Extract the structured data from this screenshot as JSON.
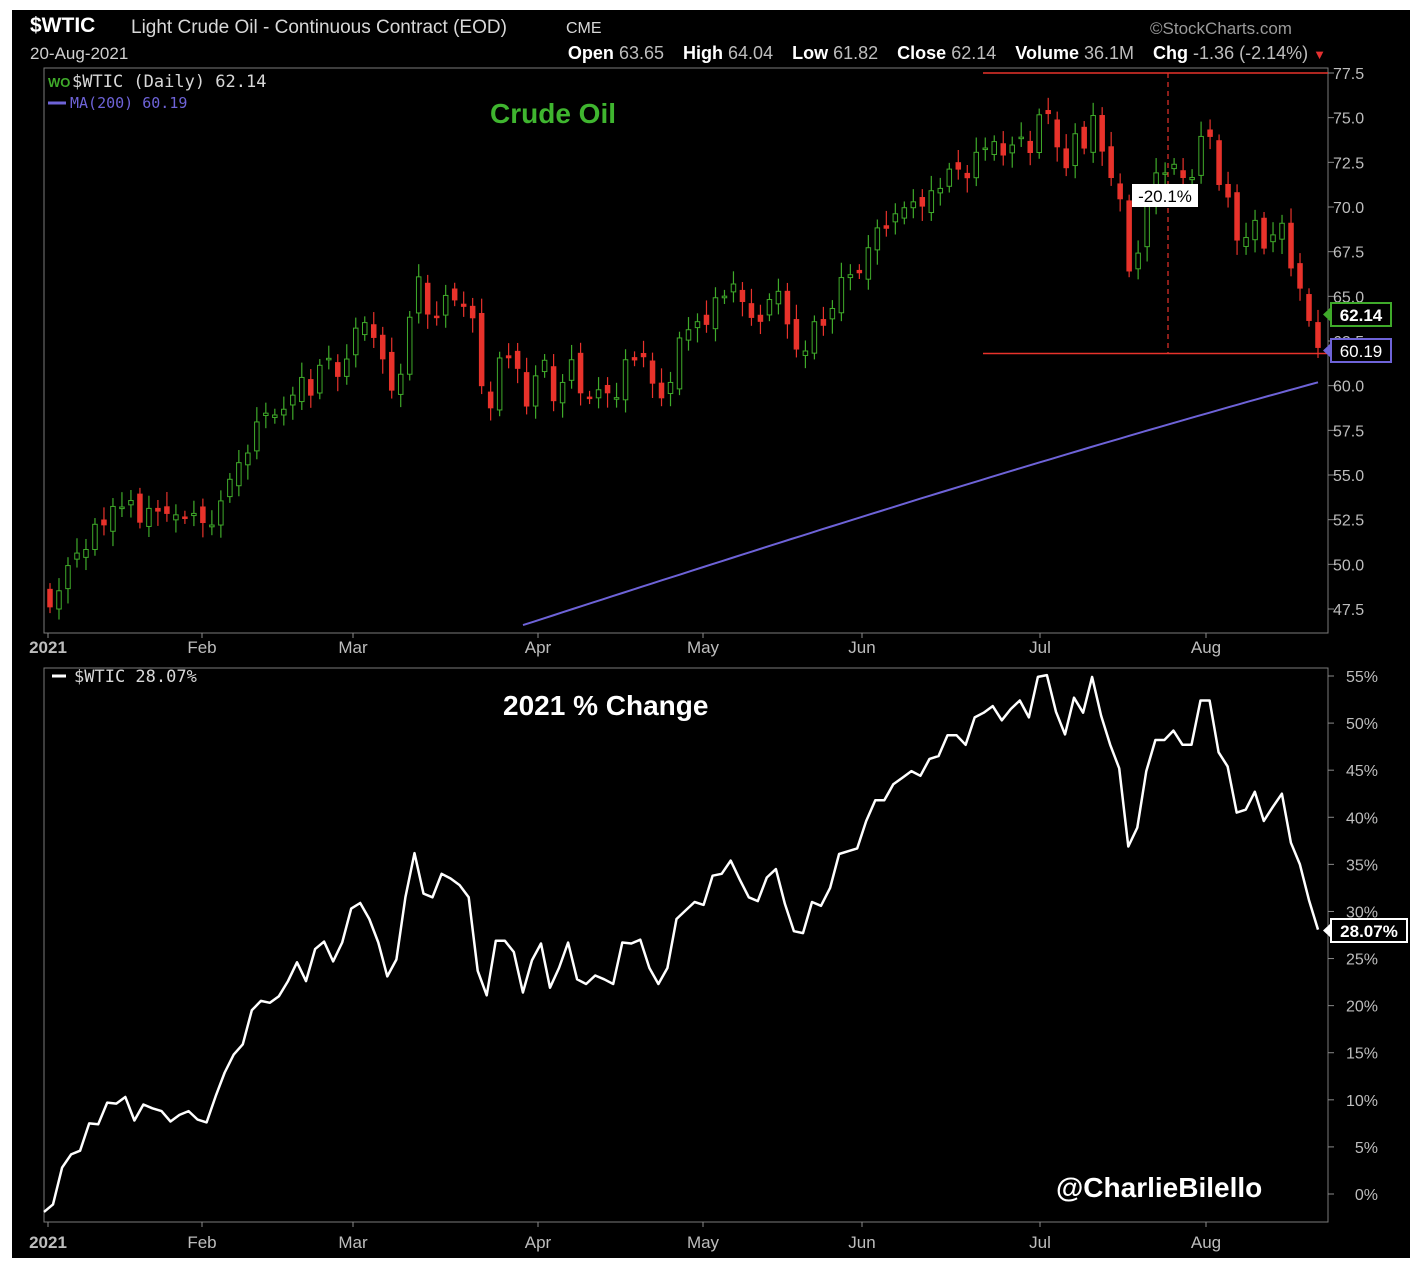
{
  "header": {
    "symbol": "$WTIC",
    "title": "Light Crude Oil - Continuous Contract (EOD)",
    "exchange": "CME",
    "copyright": "©StockCharts.com",
    "date": "20-Aug-2021",
    "stats": [
      {
        "label": "Open",
        "value": "63.65"
      },
      {
        "label": "High",
        "value": "64.04"
      },
      {
        "label": "Low",
        "value": "61.82"
      },
      {
        "label": "Close",
        "value": "62.14"
      },
      {
        "label": "Volume",
        "value": "36.1M"
      },
      {
        "label": "Chg",
        "value": "-1.36 (-2.14%)"
      }
    ]
  },
  "colors": {
    "background": "#000000",
    "up": "#3faa2a",
    "down": "#e8322b",
    "ma": "#6e63d8",
    "line": "#ffffff",
    "annotation": "#e8322b",
    "title_green": "#3fb52f"
  },
  "top_panel": {
    "legend_price": "$WTIC (Daily) 62.14",
    "legend_ma": "MA(200) 60.19",
    "heading": "Crude Oil",
    "drawdown_label": "-20.1%",
    "last_price_tag": "62.14",
    "ma_tag": "60.19"
  },
  "bottom_panel": {
    "legend": "$WTIC 28.07%",
    "heading": "2021 % Change",
    "last_tag": "28.07%",
    "watermark": "@CharlieBilello"
  },
  "chart_data": [
    {
      "type": "candlestick",
      "title": "Crude Oil",
      "y_axis_side": "right",
      "ylim": [
        46.5,
        77.8
      ],
      "yticks": [
        "47.5",
        "50.0",
        "52.5",
        "55.0",
        "57.5",
        "60.0",
        "62.5",
        "65.0",
        "67.5",
        "70.0",
        "72.5",
        "75.0",
        "77.5"
      ],
      "xticks": [
        "2021",
        "Feb",
        "Mar",
        "Apr",
        "May",
        "Jun",
        "Jul",
        "Aug"
      ],
      "grid": false,
      "series": [
        {
          "name": "$WTIC (Daily)",
          "values": [
            47.62,
            48.52,
            49.93,
            50.63,
            50.83,
            52.24,
            52.21,
            53.24,
            53.21,
            53.57,
            52.36,
            53.13,
            52.98,
            52.85,
            52.77,
            52.61,
            52.85,
            52.34,
            52.2,
            53.55,
            54.76,
            55.69,
            56.23,
            57.97,
            58.46,
            58.36,
            58.68,
            59.47,
            60.46,
            59.47,
            61.14,
            61.53,
            60.52,
            61.49,
            63.22,
            63.53,
            62.7,
            61.5,
            59.75,
            60.64,
            63.83,
            66.09,
            64.01,
            63.83,
            65.05,
            64.8,
            64.44,
            63.8,
            60.0,
            58.76,
            61.55,
            61.56,
            60.97,
            58.86,
            60.55,
            61.42,
            59.16,
            60.18,
            61.45,
            59.6,
            59.32,
            59.77,
            59.6,
            59.33,
            61.45,
            61.44,
            61.62,
            60.14,
            59.32,
            60.18,
            62.67,
            63.13,
            63.58,
            63.43,
            64.92,
            65.01,
            65.69,
            64.71,
            63.82,
            63.6,
            64.82,
            65.28,
            63.46,
            62.05,
            61.94,
            63.58,
            63.38,
            64.32,
            66.05,
            66.21,
            66.32,
            67.72,
            68.83,
            68.81,
            69.62,
            69.96,
            70.29,
            70.05,
            70.91,
            71.04,
            72.12,
            72.12,
            71.64,
            73.06,
            73.3,
            73.66,
            72.91,
            73.47,
            73.91,
            73.05,
            75.16,
            75.23,
            73.37,
            72.2,
            74.1,
            73.3,
            75.12,
            73.13,
            71.65,
            70.46,
            66.42,
            67.42,
            70.3,
            71.91,
            71.91,
            72.39,
            71.65,
            71.65,
            73.95,
            73.95,
            71.26,
            70.56,
            68.15,
            68.29,
            69.25,
            67.7,
            68.44,
            69.09,
            66.59,
            65.46,
            63.65,
            62.14
          ]
        },
        {
          "name": "MA(200)",
          "values_range": [
            46.5,
            60.19
          ],
          "x_start_label": "Apr"
        }
      ],
      "annotations": [
        {
          "type": "hline",
          "y": 77.5,
          "color": "#e8322b"
        },
        {
          "type": "hline",
          "y": 61.8,
          "color": "#e8322b"
        },
        {
          "type": "label",
          "text": "-20.1%"
        }
      ]
    },
    {
      "type": "line",
      "title": "2021 % Change",
      "y_axis_side": "right",
      "ylim": [
        -2,
        56
      ],
      "yticks": [
        "0%",
        "5%",
        "10%",
        "15%",
        "20%",
        "25%",
        "30%",
        "35%",
        "40%",
        "45%",
        "50%",
        "55%"
      ],
      "xticks": [
        "2021",
        "Feb",
        "Mar",
        "Apr",
        "May",
        "Jun",
        "Jul",
        "Aug"
      ],
      "series": [
        {
          "name": "$WTIC",
          "values": [
            -1.9,
            -1.1,
            2.8,
            4.2,
            4.6,
            7.5,
            7.4,
            9.7,
            9.6,
            10.3,
            7.8,
            9.5,
            9.1,
            8.8,
            7.7,
            8.4,
            8.8,
            7.9,
            7.6,
            10.4,
            12.9,
            14.8,
            15.9,
            19.5,
            20.5,
            20.3,
            21.0,
            22.6,
            24.6,
            22.6,
            26.0,
            26.8,
            24.7,
            26.7,
            30.3,
            30.9,
            29.2,
            26.7,
            23.1,
            24.9,
            31.5,
            36.2,
            31.9,
            31.5,
            34.0,
            33.5,
            32.8,
            31.5,
            23.7,
            21.1,
            26.9,
            26.9,
            25.7,
            21.4,
            24.8,
            26.6,
            21.9,
            24.0,
            26.7,
            22.8,
            22.3,
            23.2,
            22.8,
            22.3,
            26.7,
            26.6,
            27.0,
            24.0,
            22.3,
            24.0,
            29.2,
            30.1,
            31.0,
            30.7,
            33.8,
            34.0,
            35.4,
            33.4,
            31.5,
            31.1,
            33.6,
            34.5,
            30.8,
            27.9,
            27.7,
            31.0,
            30.6,
            32.5,
            36.1,
            36.4,
            36.7,
            39.6,
            41.8,
            41.8,
            43.5,
            44.2,
            44.9,
            44.4,
            46.2,
            46.5,
            48.7,
            48.7,
            47.7,
            50.6,
            51.1,
            51.8,
            50.3,
            51.5,
            52.4,
            50.6,
            54.9,
            55.1,
            51.2,
            48.8,
            52.7,
            51.1,
            54.9,
            50.8,
            47.7,
            45.2,
            36.9,
            38.9,
            44.9,
            48.2,
            48.2,
            49.2,
            47.7,
            47.7,
            52.4,
            52.4,
            46.9,
            45.4,
            40.5,
            40.8,
            42.7,
            39.6,
            41.1,
            42.5,
            37.3,
            35.0,
            31.2,
            28.07
          ]
        }
      ]
    }
  ]
}
